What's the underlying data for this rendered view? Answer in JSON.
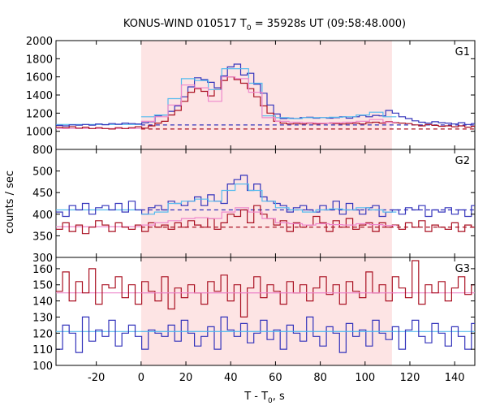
{
  "chart_data": {
    "type": "line",
    "title": "KONUS-WIND 010517 T",
    "title_sub": "0",
    "title_rest": " = 35928s UT (09:58:48.000)",
    "xlabel": "T - T",
    "xlabel_sub": "0",
    "xlabel_rest": ", s",
    "ylabel": "counts / sec",
    "xlim": [
      -38,
      149
    ],
    "xticks": [
      -20,
      0,
      20,
      40,
      60,
      80,
      100,
      120,
      140
    ],
    "highlight": [
      0,
      112
    ],
    "colors": {
      "blue": "#3333bb",
      "red": "#aa1122",
      "cyan": "#55bbee",
      "pink": "#ee88cc",
      "shade": "#fde4e4"
    },
    "panels": [
      {
        "name": "G1",
        "ylim": [
          800,
          2000
        ],
        "yticks": [
          800,
          1000,
          1200,
          1400,
          1600,
          1800,
          2000
        ],
        "series": [
          {
            "color": "blue",
            "step": 2.944,
            "x0": -38,
            "values": [
              1065,
              1060,
              1070,
              1068,
              1075,
              1068,
              1080,
              1072,
              1085,
              1078,
              1090,
              1085,
              1080,
              1095,
              1105,
              1170,
              1180,
              1220,
              1280,
              1380,
              1490,
              1590,
              1570,
              1540,
              1480,
              1610,
              1710,
              1740,
              1620,
              1640,
              1520,
              1420,
              1290,
              1190,
              1140,
              1145,
              1140,
              1150,
              1155,
              1145,
              1150,
              1145,
              1150,
              1160,
              1145,
              1160,
              1175,
              1160,
              1175,
              1170,
              1230,
              1200,
              1160,
              1140,
              1115,
              1100,
              1090,
              1105,
              1095,
              1090,
              1080,
              1095,
              1075,
              1085
            ]
          },
          {
            "color": "red",
            "step": 2.944,
            "x0": -38,
            "values": [
              1045,
              1040,
              1050,
              1035,
              1045,
              1030,
              1040,
              1030,
              1025,
              1040,
              1030,
              1040,
              1050,
              1035,
              1060,
              1090,
              1110,
              1180,
              1230,
              1330,
              1430,
              1470,
              1440,
              1390,
              1460,
              1560,
              1600,
              1570,
              1530,
              1470,
              1380,
              1280,
              1200,
              1110,
              1090,
              1080,
              1085,
              1080,
              1090,
              1080,
              1085,
              1090,
              1085,
              1080,
              1085,
              1090,
              1080,
              1095,
              1100,
              1090,
              1105,
              1095,
              1090,
              1085,
              1070,
              1060,
              1075,
              1065,
              1055,
              1060,
              1050,
              1060,
              1045,
              1055
            ]
          },
          {
            "color": "cyan",
            "step": 6,
            "x0": 0,
            "values": [
              1160,
              1180,
              1360,
              1580,
              1560,
              1460,
              1690,
              1690,
              1530,
              1170,
              1150,
              1140,
              1150,
              1150,
              1155,
              1160,
              1180,
              1210,
              1160
            ]
          },
          {
            "color": "pink",
            "step": 6,
            "x0": 0,
            "values": [
              1110,
              1160,
              1290,
              1510,
              1480,
              1330,
              1600,
              1580,
              1430,
              1150,
              1110,
              1100,
              1095,
              1090,
              1095,
              1100,
              1110,
              1130,
              1100
            ]
          }
        ],
        "hlines": [
          {
            "color": "blue",
            "y": 1070,
            "style": "dashed",
            "from": 0,
            "to": 149
          },
          {
            "color": "red",
            "y": 1025,
            "style": "dashed",
            "from": 0,
            "to": 149
          },
          {
            "color": "cyan",
            "y": 1075,
            "style": "solid",
            "from": -38,
            "to": 0
          },
          {
            "color": "pink",
            "y": 1030,
            "style": "solid",
            "from": -38,
            "to": 0
          }
        ]
      },
      {
        "name": "G2",
        "ylim": [
          300,
          550
        ],
        "yticks": [
          300,
          350,
          400,
          450,
          500
        ],
        "series": [
          {
            "color": "blue",
            "step": 2.944,
            "x0": -38,
            "values": [
              405,
              395,
              420,
              410,
              425,
              400,
              415,
              420,
              410,
              425,
              405,
              430,
              410,
              400,
              415,
              420,
              410,
              430,
              425,
              420,
              430,
              440,
              420,
              445,
              430,
              425,
              470,
              480,
              490,
              455,
              470,
              440,
              430,
              425,
              420,
              405,
              415,
              420,
              410,
              405,
              420,
              410,
              430,
              400,
              425,
              410,
              400,
              415,
              420,
              395,
              405,
              410,
              400,
              415,
              410,
              420,
              395,
              410,
              405,
              415,
              400,
              410,
              395,
              420
            ]
          },
          {
            "color": "red",
            "step": 2.944,
            "x0": -38,
            "values": [
              365,
              380,
              360,
              375,
              355,
              370,
              385,
              375,
              360,
              380,
              370,
              365,
              375,
              360,
              380,
              370,
              375,
              365,
              380,
              370,
              385,
              375,
              370,
              390,
              365,
              380,
              400,
              395,
              410,
              380,
              420,
              400,
              390,
              375,
              385,
              360,
              380,
              370,
              375,
              395,
              380,
              360,
              385,
              370,
              390,
              365,
              375,
              380,
              360,
              380,
              370,
              375,
              365,
              380,
              370,
              385,
              360,
              375,
              370,
              365,
              380,
              360,
              375,
              370
            ]
          },
          {
            "color": "cyan",
            "step": 6,
            "x0": 0,
            "values": [
              400,
              405,
              425,
              430,
              435,
              430,
              455,
              470,
              455,
              430,
              415,
              410,
              405,
              410,
              412,
              410,
              415,
              410,
              405
            ]
          },
          {
            "color": "pink",
            "step": 6,
            "x0": 0,
            "values": [
              375,
              380,
              385,
              390,
              392,
              390,
              405,
              415,
              405,
              390,
              380,
              378,
              375,
              378,
              376,
              375,
              378,
              376,
              374
            ]
          }
        ],
        "hlines": [
          {
            "color": "blue",
            "y": 410,
            "style": "dashed",
            "from": 0,
            "to": 149
          },
          {
            "color": "red",
            "y": 370,
            "style": "dashed",
            "from": 0,
            "to": 149
          },
          {
            "color": "cyan",
            "y": 410,
            "style": "solid",
            "from": -38,
            "to": 0
          },
          {
            "color": "pink",
            "y": 371,
            "style": "solid",
            "from": -38,
            "to": 0
          }
        ]
      },
      {
        "name": "G3",
        "ylim": [
          100,
          167
        ],
        "yticks": [
          100,
          110,
          120,
          130,
          140,
          150,
          160
        ],
        "series": [
          {
            "color": "blue",
            "step": 2.944,
            "x0": -38,
            "values": [
              110,
              125,
              120,
              108,
              130,
              115,
              122,
              118,
              128,
              112,
              120,
              125,
              118,
              110,
              122,
              120,
              118,
              125,
              115,
              128,
              120,
              112,
              118,
              124,
              110,
              130,
              122,
              118,
              126,
              114,
              120,
              128,
              116,
              122,
              110,
              125,
              120,
              115,
              130,
              118,
              112,
              124,
              120,
              108,
              126,
              118,
              122,
              112,
              128,
              120,
              116,
              124,
              110,
              122,
              128,
              118,
              114,
              126,
              120,
              112,
              124,
              118,
              110,
              126
            ]
          },
          {
            "color": "red",
            "step": 2.944,
            "x0": -38,
            "values": [
              146,
              158,
              140,
              152,
              145,
              160,
              138,
              150,
              148,
              155,
              142,
              150,
              138,
              152,
              146,
              140,
              155,
              135,
              148,
              142,
              150,
              145,
              138,
              152,
              146,
              156,
              140,
              150,
              130,
              148,
              155,
              142,
              150,
              146,
              138,
              152,
              145,
              150,
              140,
              148,
              155,
              144,
              150,
              138,
              152,
              146,
              142,
              158,
              145,
              150,
              140,
              155,
              148,
              142,
              165,
              138,
              150,
              145,
              152,
              140,
              148,
              155,
              144,
              150
            ]
          },
          {
            "color": "cyan",
            "step": 6,
            "x0": 0,
            "values": [
              121,
              121,
              121,
              121,
              121,
              121,
              121,
              121,
              121,
              121,
              121,
              121,
              121,
              121,
              121,
              121,
              121,
              121,
              121
            ]
          },
          {
            "color": "pink",
            "step": 6,
            "x0": 0,
            "values": [
              145,
              145,
              145,
              145,
              145,
              145,
              145,
              145,
              145,
              145,
              145,
              145,
              145,
              145,
              145,
              145,
              145,
              145,
              145
            ]
          }
        ],
        "hlines": [
          {
            "color": "cyan",
            "y": 121,
            "style": "solid",
            "from": -38,
            "to": 149
          },
          {
            "color": "pink",
            "y": 145,
            "style": "solid",
            "from": -38,
            "to": 149
          }
        ]
      }
    ]
  }
}
